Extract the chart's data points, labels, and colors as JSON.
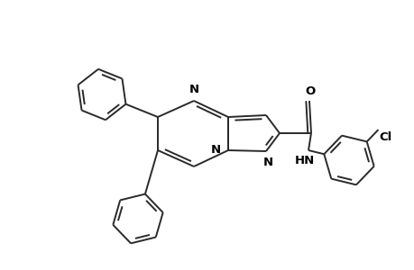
{
  "background_color": "#ffffff",
  "line_color": "#2a2a2a",
  "text_color": "#000000",
  "lw": 1.4,
  "figsize": [
    4.6,
    3.0
  ],
  "dpi": 100,
  "xlim": [
    0,
    10
  ],
  "ylim": [
    0,
    6.52
  ]
}
